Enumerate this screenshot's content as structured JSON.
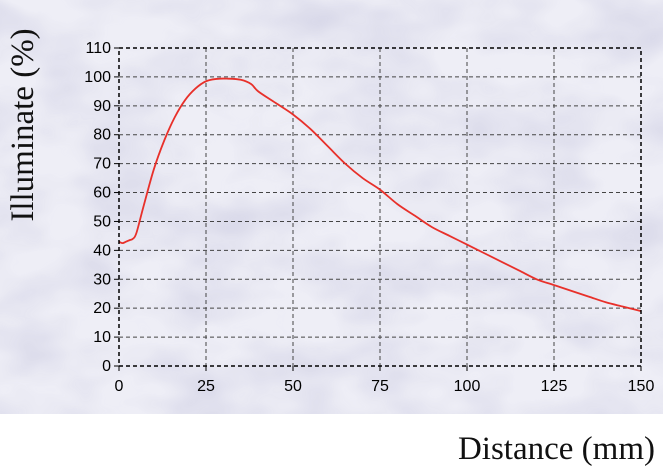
{
  "chart_data": {
    "type": "line",
    "xlabel": "Distance (mm)",
    "ylabel": "Illuminate (%)",
    "xlim": [
      0,
      150
    ],
    "ylim": [
      0,
      110
    ],
    "xticks": [
      0,
      25,
      50,
      75,
      100,
      125,
      150
    ],
    "yticks": [
      0,
      10,
      20,
      30,
      40,
      50,
      60,
      70,
      80,
      90,
      100,
      110
    ],
    "grid": true,
    "series": [
      {
        "color": "#e8302a",
        "x": [
          0,
          1,
          2,
          3,
          4,
          5,
          7,
          10,
          13,
          16,
          19,
          22,
          25,
          28,
          31,
          35,
          38,
          40,
          45,
          50,
          55,
          60,
          65,
          70,
          75,
          80,
          85,
          90,
          95,
          100,
          105,
          110,
          115,
          120,
          125,
          130,
          135,
          140,
          145,
          150
        ],
        "y": [
          43,
          42.5,
          43,
          43.5,
          44,
          46,
          55,
          68,
          78,
          86,
          92,
          96,
          98.5,
          99.3,
          99.4,
          99,
          97.5,
          95,
          91,
          87,
          82,
          76,
          70,
          65,
          61,
          56,
          52,
          48,
          45,
          42,
          39,
          36,
          33,
          30,
          28,
          26,
          24,
          22,
          20.5,
          19
        ]
      }
    ]
  }
}
